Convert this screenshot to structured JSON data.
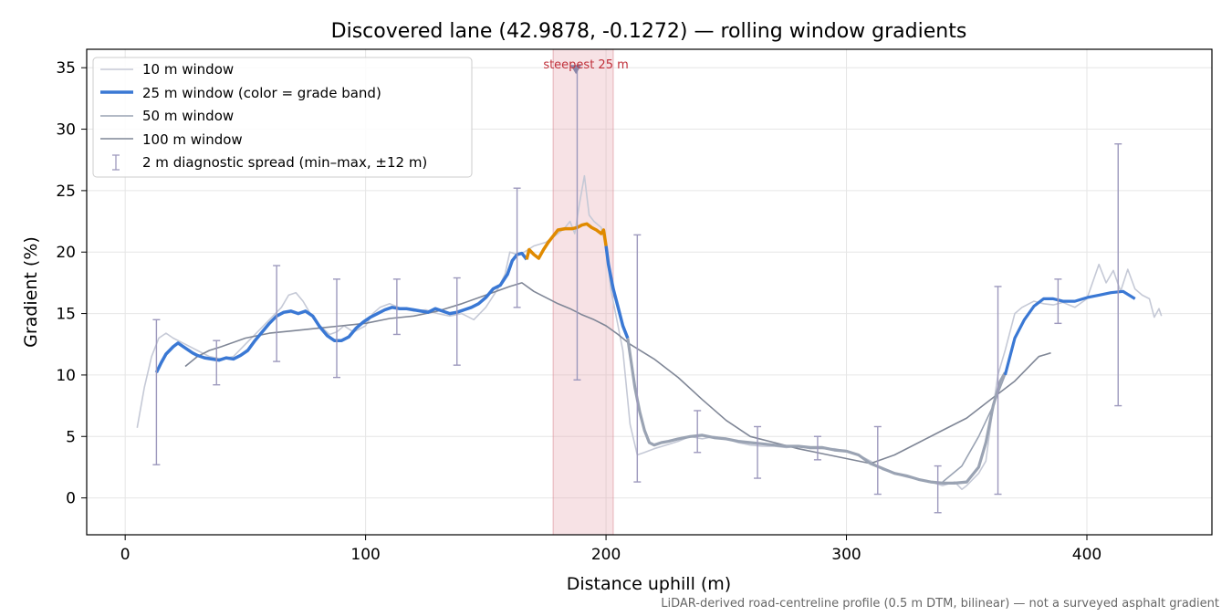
{
  "chart_data": {
    "type": "line",
    "title": "Discovered lane (42.9878, -0.1272) — rolling window gradients",
    "xlabel": "Distance uphill (m)",
    "ylabel": "Gradient (%)",
    "xlim": [
      -16,
      452
    ],
    "ylim": [
      -3,
      36.5
    ],
    "xticks": [
      0,
      100,
      200,
      300,
      400
    ],
    "yticks": [
      0,
      5,
      10,
      15,
      20,
      25,
      30,
      35
    ],
    "grid": true,
    "legend_position": "upper-left",
    "footnote": "LiDAR-derived road-centreline profile (0.5 m DTM, bilinear) — not a surveyed asphalt gradient",
    "highlight": {
      "x_start": 178,
      "x_end": 203,
      "label": "steepest 25 m",
      "marker_x": 187.5,
      "marker_y": 35
    },
    "series": [
      {
        "name": "10 m window",
        "color": "#c5c9d6",
        "points": [
          [
            5,
            5.7
          ],
          [
            8,
            9
          ],
          [
            11,
            11.5
          ],
          [
            14,
            13
          ],
          [
            17,
            13.4
          ],
          [
            20,
            13
          ],
          [
            25,
            12.5
          ],
          [
            30,
            12
          ],
          [
            35,
            11.5
          ],
          [
            40,
            11.3
          ],
          [
            45,
            11.5
          ],
          [
            50,
            12.5
          ],
          [
            55,
            13.5
          ],
          [
            60,
            14.5
          ],
          [
            65,
            15.5
          ],
          [
            68,
            16.5
          ],
          [
            71,
            16.7
          ],
          [
            74,
            16
          ],
          [
            77,
            15
          ],
          [
            80,
            14.2
          ],
          [
            85,
            13.3
          ],
          [
            88,
            13.5
          ],
          [
            91,
            14
          ],
          [
            95,
            13.5
          ],
          [
            100,
            14
          ],
          [
            103,
            15
          ],
          [
            106,
            15.5
          ],
          [
            110,
            15.8
          ],
          [
            115,
            15.4
          ],
          [
            120,
            15.2
          ],
          [
            125,
            15.3
          ],
          [
            130,
            15
          ],
          [
            135,
            14.8
          ],
          [
            140,
            15
          ],
          [
            145,
            14.5
          ],
          [
            150,
            15.5
          ],
          [
            155,
            17
          ],
          [
            158,
            18.2
          ],
          [
            160,
            20
          ],
          [
            163,
            19.8
          ],
          [
            166,
            20
          ],
          [
            170,
            20.5
          ],
          [
            175,
            20.8
          ],
          [
            180,
            21.5
          ],
          [
            183,
            22
          ],
          [
            185,
            22.5
          ],
          [
            187,
            21.5
          ],
          [
            189,
            24
          ],
          [
            191,
            26.2
          ],
          [
            193,
            23
          ],
          [
            195,
            22.5
          ],
          [
            198,
            22
          ],
          [
            200,
            20.5
          ],
          [
            202,
            17
          ],
          [
            204,
            15
          ],
          [
            207,
            12
          ],
          [
            210,
            6
          ],
          [
            213,
            3.5
          ],
          [
            216,
            3.7
          ],
          [
            220,
            4
          ],
          [
            225,
            4.3
          ],
          [
            230,
            4.6
          ],
          [
            235,
            5
          ],
          [
            240,
            4.8
          ],
          [
            245,
            5
          ],
          [
            250,
            4.8
          ],
          [
            255,
            4.5
          ],
          [
            260,
            4.3
          ],
          [
            265,
            4.2
          ],
          [
            270,
            4.2
          ],
          [
            275,
            4.1
          ],
          [
            280,
            4.2
          ],
          [
            285,
            4
          ],
          [
            290,
            4
          ],
          [
            295,
            4
          ],
          [
            300,
            3.8
          ],
          [
            305,
            3.5
          ],
          [
            310,
            3
          ],
          [
            315,
            2.3
          ],
          [
            320,
            2
          ],
          [
            325,
            1.7
          ],
          [
            330,
            1.5
          ],
          [
            335,
            1.3
          ],
          [
            340,
            1
          ],
          [
            345,
            1.3
          ],
          [
            348,
            0.7
          ],
          [
            350,
            1
          ],
          [
            355,
            2
          ],
          [
            358,
            3
          ],
          [
            360,
            6
          ],
          [
            363,
            10
          ],
          [
            366,
            12
          ],
          [
            370,
            15
          ],
          [
            373,
            15.5
          ],
          [
            378,
            16
          ],
          [
            382,
            15.8
          ],
          [
            386,
            15.7
          ],
          [
            390,
            15.9
          ],
          [
            395,
            15.5
          ],
          [
            400,
            16.2
          ],
          [
            405,
            19
          ],
          [
            408,
            17.5
          ],
          [
            411,
            18.5
          ],
          [
            414,
            16.8
          ],
          [
            417,
            18.6
          ],
          [
            420,
            17
          ],
          [
            423,
            16.5
          ],
          [
            426,
            16.2
          ],
          [
            428,
            14.7
          ],
          [
            430,
            15.4
          ],
          [
            431,
            14.8
          ]
        ]
      },
      {
        "name": "25 m window (color = grade band)",
        "color": "#3a78d4",
        "band_color": "#e08a00",
        "points": [
          [
            13,
            10.2
          ],
          [
            15,
            11
          ],
          [
            17,
            11.7
          ],
          [
            20,
            12.3
          ],
          [
            22,
            12.6
          ],
          [
            25,
            12.2
          ],
          [
            28,
            11.8
          ],
          [
            30,
            11.6
          ],
          [
            33,
            11.4
          ],
          [
            36,
            11.3
          ],
          [
            39,
            11.2
          ],
          [
            42,
            11.4
          ],
          [
            45,
            11.3
          ],
          [
            48,
            11.6
          ],
          [
            51,
            12
          ],
          [
            54,
            12.8
          ],
          [
            57,
            13.5
          ],
          [
            60,
            14.2
          ],
          [
            63,
            14.8
          ],
          [
            66,
            15.1
          ],
          [
            69,
            15.2
          ],
          [
            72,
            15
          ],
          [
            75,
            15.2
          ],
          [
            78,
            14.8
          ],
          [
            81,
            13.9
          ],
          [
            84,
            13.2
          ],
          [
            87,
            12.8
          ],
          [
            90,
            12.8
          ],
          [
            93,
            13.1
          ],
          [
            96,
            13.8
          ],
          [
            99,
            14.3
          ],
          [
            102,
            14.7
          ],
          [
            105,
            15
          ],
          [
            108,
            15.3
          ],
          [
            111,
            15.5
          ],
          [
            114,
            15.4
          ],
          [
            117,
            15.4
          ],
          [
            120,
            15.3
          ],
          [
            123,
            15.2
          ],
          [
            126,
            15.1
          ],
          [
            129,
            15.4
          ],
          [
            132,
            15.2
          ],
          [
            135,
            15
          ],
          [
            138,
            15.1
          ],
          [
            141,
            15.3
          ],
          [
            144,
            15.5
          ],
          [
            147,
            15.8
          ],
          [
            150,
            16.3
          ],
          [
            153,
            17
          ],
          [
            156,
            17.3
          ],
          [
            159,
            18.2
          ],
          [
            161,
            19.3
          ],
          [
            163,
            19.8
          ],
          [
            165,
            19.9
          ],
          [
            167,
            19.4
          ]
        ],
        "band_points": [
          [
            167,
            19.4
          ],
          [
            168,
            20.2
          ],
          [
            170,
            19.8
          ],
          [
            172,
            19.5
          ],
          [
            174,
            20.2
          ],
          [
            176,
            20.8
          ],
          [
            178,
            21.3
          ],
          [
            180,
            21.8
          ],
          [
            183,
            21.9
          ],
          [
            186,
            21.9
          ],
          [
            188,
            22
          ],
          [
            190,
            22.2
          ],
          [
            192,
            22.3
          ],
          [
            194,
            22
          ],
          [
            196,
            21.8
          ],
          [
            198,
            21.5
          ],
          [
            199,
            21.8
          ],
          [
            200,
            20.5
          ]
        ],
        "tail_points": [
          [
            200,
            20.5
          ],
          [
            201,
            19
          ],
          [
            203,
            17
          ],
          [
            205,
            15.5
          ],
          [
            207,
            14
          ],
          [
            209,
            13
          ]
        ]
      },
      {
        "name": "50 m window",
        "color": "#9aa3b3",
        "points": [
          [
            209,
            13
          ],
          [
            212,
            9
          ],
          [
            214,
            7
          ],
          [
            216,
            5.5
          ],
          [
            218,
            4.5
          ],
          [
            220,
            4.3
          ],
          [
            223,
            4.5
          ],
          [
            226,
            4.6
          ],
          [
            230,
            4.8
          ],
          [
            235,
            5
          ],
          [
            240,
            5.1
          ],
          [
            245,
            4.9
          ],
          [
            250,
            4.8
          ],
          [
            255,
            4.6
          ],
          [
            260,
            4.5
          ],
          [
            265,
            4.4
          ],
          [
            270,
            4.3
          ],
          [
            275,
            4.2
          ],
          [
            280,
            4.2
          ],
          [
            285,
            4.1
          ],
          [
            290,
            4.1
          ],
          [
            295,
            3.9
          ],
          [
            300,
            3.8
          ],
          [
            305,
            3.5
          ],
          [
            310,
            2.8
          ],
          [
            315,
            2.4
          ],
          [
            320,
            2
          ],
          [
            325,
            1.8
          ],
          [
            330,
            1.5
          ],
          [
            335,
            1.3
          ],
          [
            340,
            1.2
          ],
          [
            345,
            1.2
          ],
          [
            350,
            1.3
          ],
          [
            355,
            2.5
          ],
          [
            358,
            4.5
          ],
          [
            361,
            7.5
          ],
          [
            364,
            9.5
          ],
          [
            366,
            10.2
          ]
        ],
        "extended_points": [
          [
            340,
            1.3
          ],
          [
            348,
            2.6
          ],
          [
            355,
            5
          ],
          [
            361,
            7.5
          ],
          [
            366,
            10
          ],
          [
            370,
            13
          ],
          [
            374,
            14.5
          ],
          [
            378,
            15.6
          ],
          [
            382,
            16.2
          ],
          [
            386,
            16.2
          ],
          [
            390,
            16
          ],
          [
            395,
            16
          ],
          [
            400,
            16.3
          ],
          [
            405,
            16.5
          ],
          [
            410,
            16.7
          ],
          [
            415,
            16.8
          ],
          [
            420,
            16.2
          ]
        ]
      },
      {
        "name": "100 m window",
        "color": "#7f8696",
        "points": [
          [
            25,
            10.7
          ],
          [
            30,
            11.5
          ],
          [
            35,
            12
          ],
          [
            40,
            12.3
          ],
          [
            50,
            13
          ],
          [
            60,
            13.4
          ],
          [
            70,
            13.6
          ],
          [
            80,
            13.8
          ],
          [
            90,
            14
          ],
          [
            100,
            14.2
          ],
          [
            110,
            14.6
          ],
          [
            120,
            14.8
          ],
          [
            130,
            15.2
          ],
          [
            140,
            15.8
          ],
          [
            150,
            16.5
          ],
          [
            160,
            17.2
          ],
          [
            165,
            17.5
          ],
          [
            170,
            16.8
          ],
          [
            175,
            16.3
          ],
          [
            180,
            15.8
          ],
          [
            185,
            15.4
          ],
          [
            190,
            14.9
          ],
          [
            195,
            14.5
          ],
          [
            200,
            14
          ],
          [
            205,
            13.3
          ],
          [
            210,
            12.5
          ],
          [
            220,
            11.3
          ],
          [
            230,
            9.8
          ],
          [
            240,
            8
          ],
          [
            250,
            6.3
          ],
          [
            260,
            5
          ],
          [
            270,
            4.5
          ],
          [
            280,
            4
          ],
          [
            290,
            3.6
          ],
          [
            300,
            3.2
          ],
          [
            310,
            2.8
          ],
          [
            320,
            3.5
          ],
          [
            330,
            4.5
          ],
          [
            340,
            5.5
          ],
          [
            350,
            6.5
          ],
          [
            360,
            8
          ],
          [
            370,
            9.5
          ],
          [
            380,
            11.5
          ],
          [
            385,
            11.8
          ]
        ]
      },
      {
        "name": "2 m diagnostic spread (min–max, ±12 m)",
        "color": "#9d99bd",
        "errorbars": [
          [
            13,
            2.7,
            14.5
          ],
          [
            38,
            9.2,
            12.8
          ],
          [
            63,
            11.1,
            18.9
          ],
          [
            88,
            9.8,
            17.8
          ],
          [
            113,
            13.3,
            17.8
          ],
          [
            138,
            10.8,
            17.9
          ],
          [
            163,
            15.5,
            25.2
          ],
          [
            188,
            9.6,
            35
          ],
          [
            213,
            1.3,
            21.4
          ],
          [
            238,
            3.7,
            7.1
          ],
          [
            263,
            1.6,
            5.8
          ],
          [
            288,
            3.1,
            5
          ],
          [
            313,
            0.3,
            5.8
          ],
          [
            338,
            -1.2,
            2.6
          ],
          [
            363,
            0.3,
            17.2
          ],
          [
            388,
            14.2,
            17.8
          ],
          [
            413,
            7.5,
            28.8
          ]
        ]
      }
    ]
  }
}
